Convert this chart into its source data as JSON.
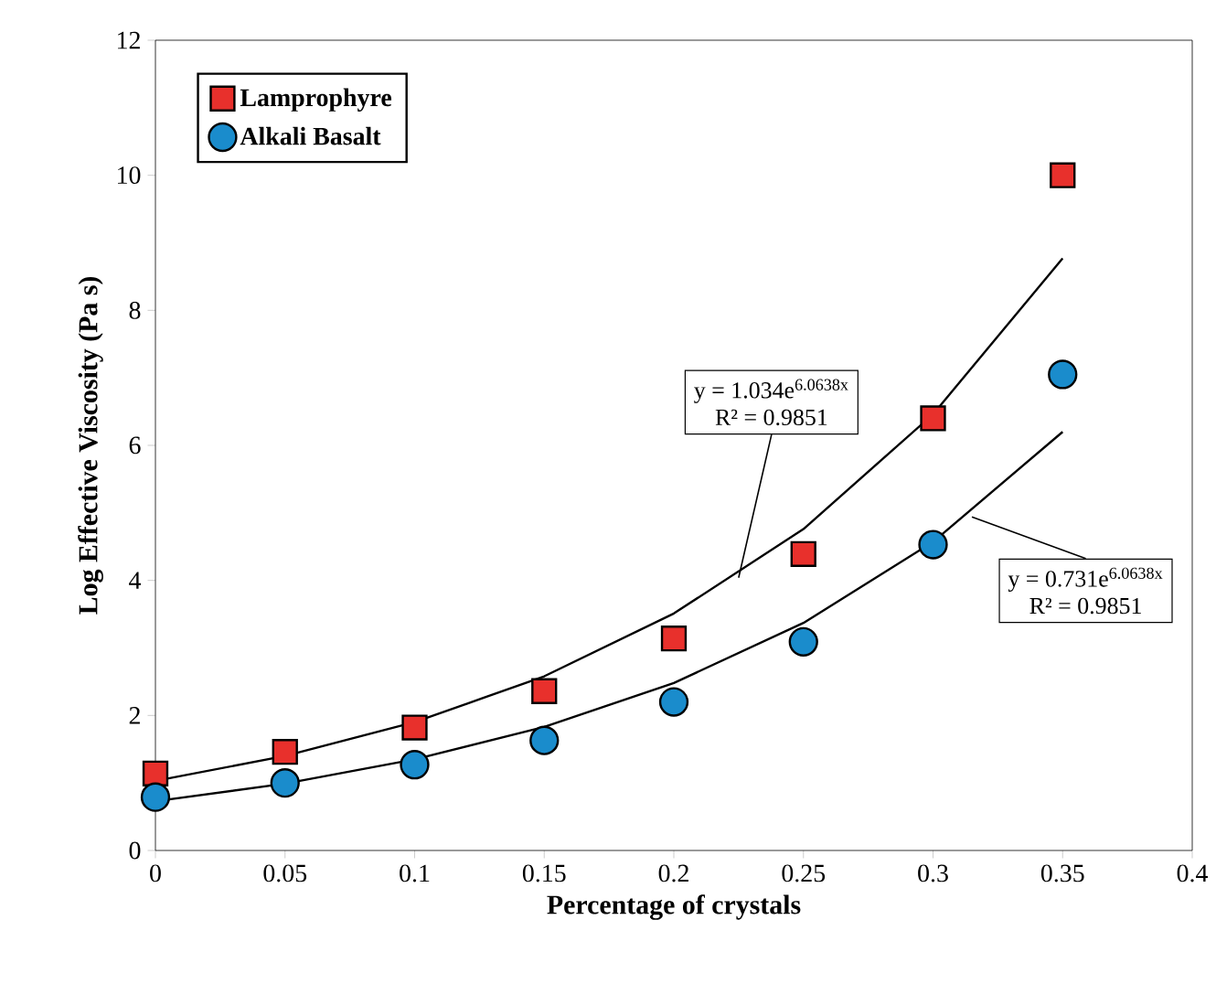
{
  "chart_data": {
    "type": "scatter",
    "xlabel": "Percentage of crystals",
    "ylabel": "Log Effective Viscosity  (Pa s)",
    "xlim": [
      0,
      0.4
    ],
    "xticks": [
      0,
      0.05,
      0.1,
      0.15,
      0.2,
      0.25,
      0.3,
      0.35,
      0.4
    ],
    "ylim": [
      0,
      12
    ],
    "yticks": [
      0,
      2,
      4,
      6,
      8,
      10,
      12
    ],
    "grid": false,
    "legend": "top left",
    "series": [
      {
        "name": "Lamprophyre",
        "color": "#e8302c",
        "marker": "square",
        "x": [
          0,
          0.05,
          0.1,
          0.15,
          0.2,
          0.25,
          0.3,
          0.35
        ],
        "values": [
          1.14,
          1.46,
          1.82,
          2.36,
          3.14,
          4.39,
          6.4,
          10.0
        ]
      },
      {
        "name": "Alkali Basalt",
        "color": "#1a8ccc",
        "marker": "circle",
        "x": [
          0,
          0.05,
          0.1,
          0.15,
          0.2,
          0.25,
          0.3,
          0.35
        ],
        "values": [
          0.79,
          1.0,
          1.27,
          1.63,
          2.2,
          3.09,
          4.53,
          7.05
        ]
      },
      {
        "type": "line",
        "color": "#000000",
        "marker": "none",
        "x": [
          0,
          0.05,
          0.1,
          0.15,
          0.2,
          0.25,
          0.3,
          0.35
        ],
        "values": [
          1.03,
          1.4,
          1.9,
          2.58,
          3.51,
          4.76,
          6.46,
          8.77
        ]
      },
      {
        "type": "line",
        "color": "#000000",
        "marker": "none",
        "x": [
          0,
          0.05,
          0.1,
          0.15,
          0.2,
          0.25,
          0.3,
          0.35
        ],
        "values": [
          0.73,
          0.99,
          1.35,
          1.83,
          2.48,
          3.37,
          4.57,
          6.2
        ]
      }
    ],
    "annotations": [
      "y = 1.034e$^{6.0638x}$",
      {
        "text": "R² = 0.9851",
        "x": 0.225,
        "y": 4.04
      },
      {
        "text": "y = 0.731e$^{6.0638x}$",
        "x": 0.315,
        "y": 4.94
      },
      "R² = 0.9851"
    ]
  }
}
